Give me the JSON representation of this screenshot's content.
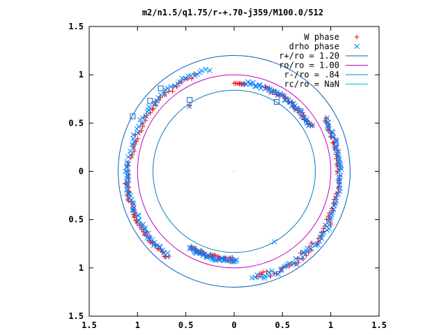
{
  "chart_data": {
    "type": "scatter",
    "title": "m2/n1.5/q1.75/r-+.70-j359/M100.0/512",
    "xlim": [
      -1.5,
      1.5
    ],
    "ylim": [
      -1.5,
      1.5
    ],
    "x_ticks": [
      {
        "value": -1.5,
        "label": "1.5"
      },
      {
        "value": -1.0,
        "label": "1"
      },
      {
        "value": -0.5,
        "label": "0.5"
      },
      {
        "value": 0.0,
        "label": "0"
      },
      {
        "value": 0.5,
        "label": "0.5"
      },
      {
        "value": 1.0,
        "label": "1"
      },
      {
        "value": 1.5,
        "label": "1.5"
      }
    ],
    "y_ticks": [
      {
        "value": 1.5,
        "label": "1.5"
      },
      {
        "value": 1.0,
        "label": "1"
      },
      {
        "value": 0.5,
        "label": "0.5"
      },
      {
        "value": 0.0,
        "label": "0"
      },
      {
        "value": -0.5,
        "label": "0.5"
      },
      {
        "value": -1.0,
        "label": "1"
      },
      {
        "value": -1.5,
        "label": "1.5"
      }
    ],
    "grid": false,
    "legend_position": "top-right",
    "series": [
      {
        "name": "W phase",
        "kind": "points",
        "marker": "plus",
        "color": "#ff0000",
        "arcs": [
          {
            "r": 1.07,
            "from": 113,
            "to": 172,
            "n": 34,
            "jitter": 0.025
          },
          {
            "r": 1.1,
            "from": 175,
            "to": 186,
            "n": 6,
            "jitter": 0.015
          },
          {
            "r": 1.12,
            "from": 186,
            "to": 232,
            "n": 46,
            "jitter": 0.02
          },
          {
            "r": 0.91,
            "from": 240,
            "to": 270,
            "n": 36,
            "jitter": 0.02
          },
          {
            "r": 1.12,
            "from": 282,
            "to": 332,
            "n": 34,
            "jitter": 0.035
          },
          {
            "r": 1.09,
            "from": 332,
            "to": 358,
            "n": 18,
            "jitter": 0.015
          },
          {
            "r": 1.08,
            "from": 0,
            "to": 30,
            "n": 28,
            "jitter": 0.02
          },
          {
            "r": 0.92,
            "from": 30,
            "to": 70,
            "n": 40,
            "jitter": 0.02
          },
          {
            "r": 0.91,
            "from": 83,
            "to": 90,
            "n": 10,
            "jitter": 0.01
          },
          {
            "r": 0.82,
            "from": 124,
            "to": 124,
            "n": 1,
            "jitter": 0.0
          }
        ]
      },
      {
        "name": "drho phase",
        "kind": "points",
        "marker": "cross",
        "color": "#0080ff",
        "arcs": [
          {
            "r": 1.09,
            "from": 104,
            "to": 172,
            "n": 40,
            "jitter": 0.02
          },
          {
            "r": 1.11,
            "from": 175,
            "to": 232,
            "n": 50,
            "jitter": 0.02
          },
          {
            "r": 0.92,
            "from": 240,
            "to": 272,
            "n": 40,
            "jitter": 0.02
          },
          {
            "r": 1.13,
            "from": 280,
            "to": 330,
            "n": 38,
            "jitter": 0.03
          },
          {
            "r": 1.1,
            "from": 330,
            "to": 360,
            "n": 20,
            "jitter": 0.015
          },
          {
            "r": 1.09,
            "from": 0,
            "to": 30,
            "n": 30,
            "jitter": 0.02
          },
          {
            "r": 0.92,
            "from": 30,
            "to": 84,
            "n": 46,
            "jitter": 0.02
          },
          {
            "r": 0.82,
            "from": 124,
            "to": 124,
            "n": 1,
            "jitter": 0.0
          },
          {
            "r": 0.84,
            "from": 300,
            "to": 300,
            "n": 1,
            "jitter": 0.0
          }
        ]
      },
      {
        "name": "r+/ro = 1.20",
        "kind": "circle",
        "r": 1.2,
        "color": "#0060c0"
      },
      {
        "name": "ro/ro = 1.00",
        "kind": "circle",
        "r": 1.0,
        "color": "#c000c0"
      },
      {
        "name": "r-/ro = .84",
        "kind": "circle",
        "r": 0.84,
        "color": "#0080c0"
      },
      {
        "name": "rc/ro = NaN",
        "kind": "circle",
        "r": null,
        "color": "#00c0c0"
      }
    ],
    "squares": [
      {
        "x": -1.05,
        "y": 0.57
      },
      {
        "x": -0.87,
        "y": 0.73
      },
      {
        "x": -0.76,
        "y": 0.86
      },
      {
        "x": -0.46,
        "y": 0.74
      },
      {
        "x": 0.44,
        "y": 0.72
      }
    ]
  }
}
